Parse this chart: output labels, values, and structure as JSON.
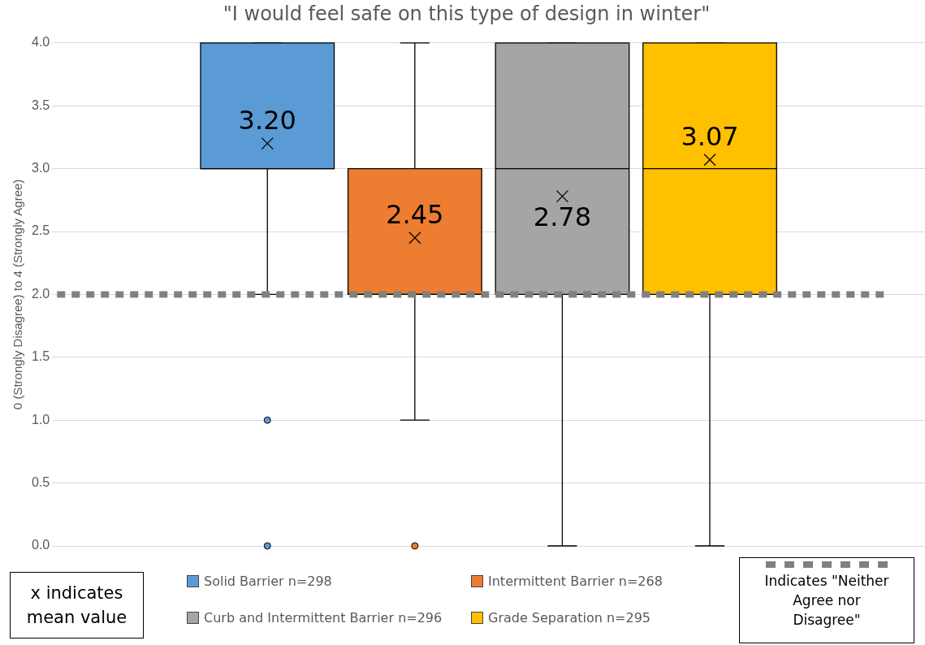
{
  "chart_data": {
    "type": "box",
    "title": "\"I would feel safe on this type of design in winter\"",
    "ylabel": "0 (Strongly Disagree) to 4 (Strongly Agree)",
    "categories": [
      null
    ],
    "series": [
      {
        "name": "Solid Barrier n=298",
        "color": "#5b9bd5",
        "boxes": [
          {
            "low": 2,
            "q1": 3,
            "median": 3,
            "q3": 4,
            "high": 4,
            "mean": 3.2,
            "outliers": [
              1,
              0
            ]
          }
        ]
      },
      {
        "name": "Intermittent Barrier n=268",
        "color": "#ed7d31",
        "boxes": [
          {
            "low": 1,
            "q1": 2,
            "median": 2,
            "q3": 3,
            "high": 4,
            "mean": 2.45,
            "outliers": [
              0
            ]
          }
        ]
      },
      {
        "name": "Curb and Intermittent Barrier n=296",
        "color": "#a5a5a5",
        "boxes": [
          {
            "low": 0,
            "q1": 2,
            "median": 3,
            "q3": 4,
            "high": 4,
            "mean": 2.78
          }
        ]
      },
      {
        "name": "Grade Separation n=295",
        "color": "#ffc000",
        "boxes": [
          {
            "low": 0,
            "q1": 2,
            "median": 3,
            "q3": 4,
            "high": 4,
            "mean": 3.07
          }
        ]
      }
    ],
    "ylim": [
      0,
      4
    ],
    "yticks": [
      {
        "value": 0,
        "label": "0.0"
      },
      {
        "value": 0.5,
        "label": "0.5"
      },
      {
        "value": 1,
        "label": "1.0"
      },
      {
        "value": 1.5,
        "label": "1.5"
      },
      {
        "value": 2,
        "label": "2.0"
      },
      {
        "value": 2.5,
        "label": "2.5"
      },
      {
        "value": 3,
        "label": "3.0"
      },
      {
        "value": 3.5,
        "label": "3.5"
      },
      {
        "value": 4,
        "label": "4.0"
      }
    ],
    "grid": "y",
    "legend": "bottom",
    "ref_lines": [
      {
        "axis": "y",
        "value": 2,
        "color": "#808080",
        "line_style": "dashed"
      }
    ],
    "annotations": [
      "3.20",
      "2.45",
      "2.78",
      "3.07",
      "x indicates mean value",
      "Indicates \"Neither Agree nor Disagree\""
    ]
  }
}
